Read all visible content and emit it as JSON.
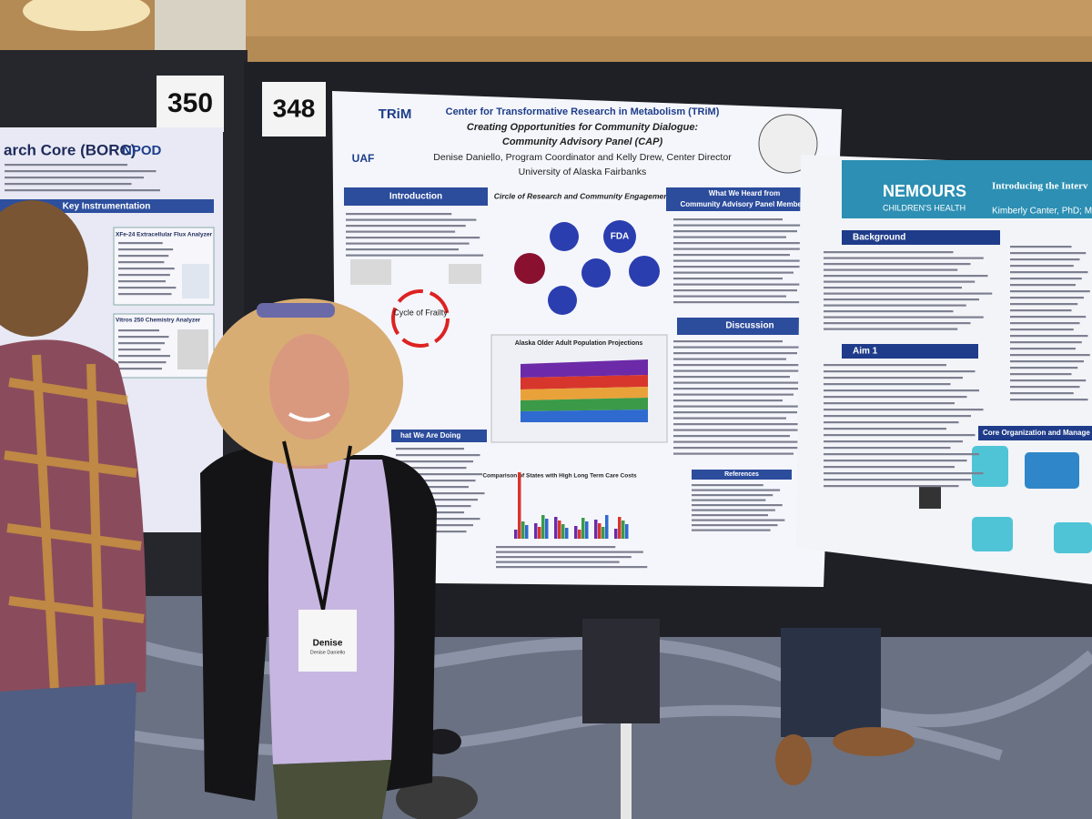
{
  "boards": [
    {
      "number": "350"
    },
    {
      "number": "348"
    }
  ],
  "left_poster": {
    "title": "arch Core (BORC)",
    "logo": "NPOD",
    "section": "Key Instrumentation",
    "items": [
      "XFe-24 Extracellular Flux Analyzer",
      "Vitros 250 Chemistry Analyzer"
    ]
  },
  "center_poster": {
    "logo": "TRiM",
    "institution_logo": "UAF",
    "title": "Center for Transformative Research in Metabolism (TRiM)",
    "subtitle_lines": [
      "Creating Opportunities for Community Dialogue:",
      "Community Advisory Panel (CAP)"
    ],
    "authors": "Denise Daniello, Program Coordinator and Kelly Drew, Center Director",
    "affiliation": "University of Alaska Fairbanks",
    "sections": [
      "Introduction",
      "Discussion",
      "References",
      "hat We Are Doing"
    ],
    "heard_header_lines": [
      "What We Heard from",
      "Community Advisory Panel Members"
    ],
    "circle_title": "Circle of Research and Community Engagement",
    "diagram_labels": [
      "Cycle of Frailty",
      "FDA"
    ],
    "figures": [
      "Alaska Older Adult Population Projections",
      "Comparison of States with High Long Term Care Costs"
    ]
  },
  "right_poster": {
    "logo": "NEMOURS",
    "logo_sub": "CHILDREN'S HEALTH",
    "title": "Introducing the Interv",
    "authors": "Kimberly Canter, PhD; Mic",
    "sections": [
      "Background",
      "Aim 1",
      "Core Organization and Manage"
    ]
  },
  "badge": {
    "name": "Denise",
    "full_name": "Denise Daniello"
  }
}
